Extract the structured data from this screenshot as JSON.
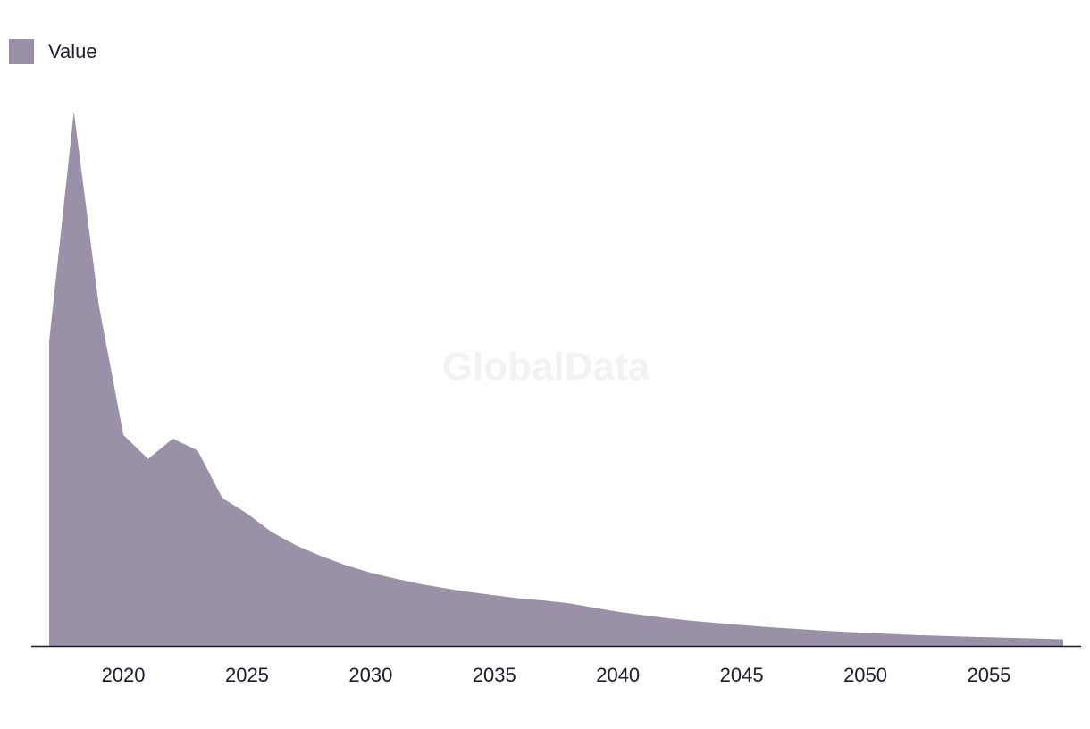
{
  "legend": {
    "label": "Value"
  },
  "watermark": "GlobalData",
  "chart_data": {
    "type": "area",
    "title": "",
    "xlabel": "",
    "ylabel": "",
    "color": "#9a91a9",
    "axis_color": "#1f1b2d",
    "grid": false,
    "legend_position": "top-left",
    "xlim": [
      2017,
      2058
    ],
    "ylim": [
      0,
      100
    ],
    "x_ticks": [
      "2020",
      "2025",
      "2030",
      "2035",
      "2040",
      "2045",
      "2050",
      "2055"
    ],
    "series": [
      {
        "name": "Value",
        "x": [
          2017,
          2018,
          2019,
          2020,
          2021,
          2022,
          2023,
          2024,
          2025,
          2026,
          2027,
          2028,
          2029,
          2030,
          2031,
          2032,
          2033,
          2034,
          2035,
          2036,
          2037,
          2038,
          2039,
          2040,
          2041,
          2042,
          2043,
          2044,
          2045,
          2046,
          2047,
          2048,
          2049,
          2050,
          2051,
          2052,
          2053,
          2054,
          2055,
          2056,
          2057,
          2058
        ],
        "values": [
          57,
          100,
          64,
          39.5,
          35,
          38.8,
          36.6,
          27.7,
          24.8,
          21.3,
          18.8,
          16.8,
          15.1,
          13.7,
          12.6,
          11.6,
          10.8,
          10.1,
          9.5,
          8.9,
          8.5,
          8.0,
          7.2,
          6.4,
          5.8,
          5.2,
          4.7,
          4.3,
          3.9,
          3.55,
          3.25,
          2.95,
          2.7,
          2.45,
          2.25,
          2.05,
          1.9,
          1.75,
          1.62,
          1.5,
          1.38,
          1.25
        ]
      }
    ]
  }
}
